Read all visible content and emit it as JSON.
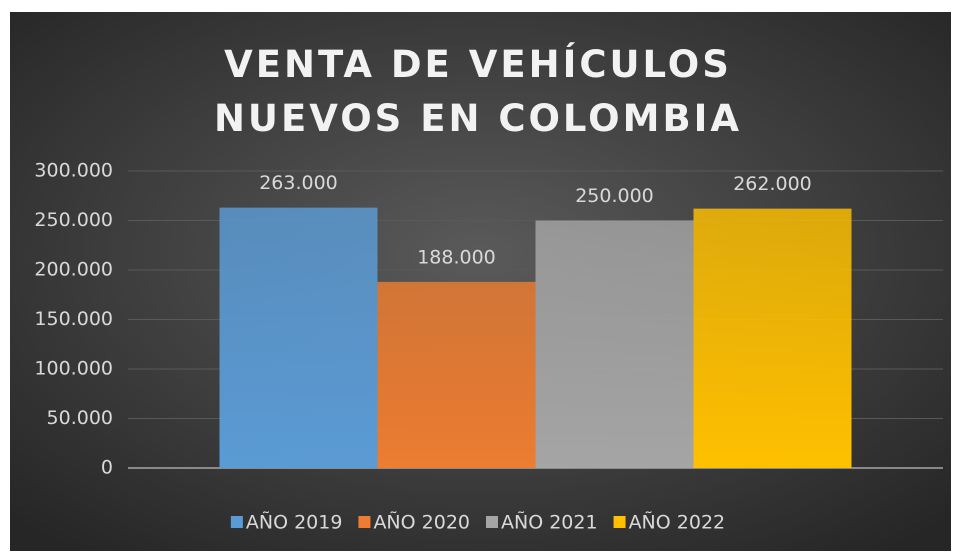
{
  "chart_data": {
    "type": "bar",
    "title": "VENTA DE VEHÍCULOS NUEVOS EN COLOMBIA",
    "categories": [
      null
    ],
    "series": [
      {
        "name": "AÑO 2019",
        "color": "#5b9bd5",
        "values": [
          263000
        ],
        "value_labels": [
          "263.000"
        ]
      },
      {
        "name": "AÑO 2020",
        "color": "#ed7d31",
        "values": [
          188000
        ],
        "value_labels": [
          "188.000"
        ]
      },
      {
        "name": "AÑO 2021",
        "color": "#a5a5a5",
        "values": [
          250000
        ],
        "value_labels": [
          "250.000"
        ]
      },
      {
        "name": "AÑO 2022",
        "color": "#ffc000",
        "values": [
          262000
        ],
        "value_labels": [
          "262.000"
        ]
      }
    ],
    "ylim": [
      0,
      300000
    ],
    "yticks": [
      0,
      {
        "value": 50000,
        "label": "50.000"
      },
      {
        "value": 100000,
        "label": "100.000"
      },
      {
        "value": 150000,
        "label": "150.000"
      },
      {
        "value": 200000,
        "label": "200.000"
      },
      {
        "value": 250000,
        "label": "250.000"
      },
      {
        "value": 300000,
        "label": "300.000"
      }
    ],
    "grid": true,
    "legend": "bottom"
  }
}
